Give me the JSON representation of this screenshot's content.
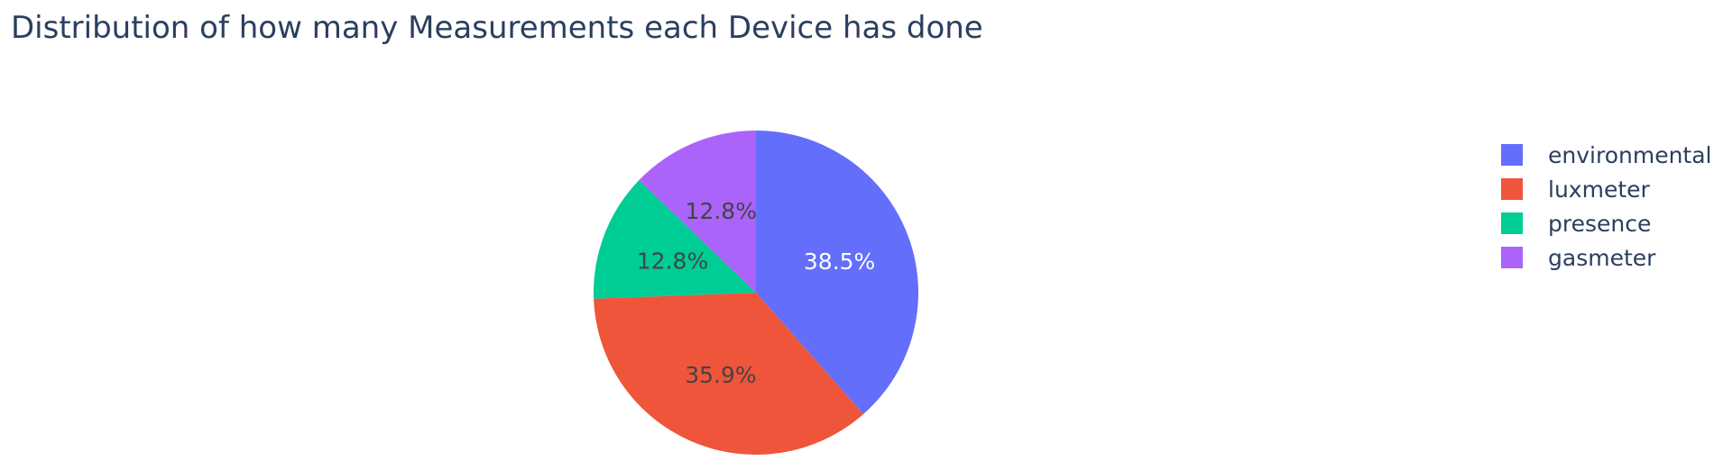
{
  "chart_data": {
    "type": "pie",
    "title": "Distribution of how many Measurements each Device has done",
    "categories": [
      "environmental",
      "luxmeter",
      "presence",
      "gasmeter"
    ],
    "values": [
      38.5,
      35.9,
      12.8,
      12.8
    ],
    "labels": [
      "38.5%",
      "35.9%",
      "12.8%",
      "12.8%"
    ],
    "colors": [
      "#636efa",
      "#EF553B",
      "#00cc96",
      "#ab63fa"
    ],
    "label_colors": [
      "#ffffff",
      "#444444",
      "#444444",
      "#444444"
    ],
    "legend_position": "right",
    "direction": "clockwise",
    "start": "top"
  }
}
